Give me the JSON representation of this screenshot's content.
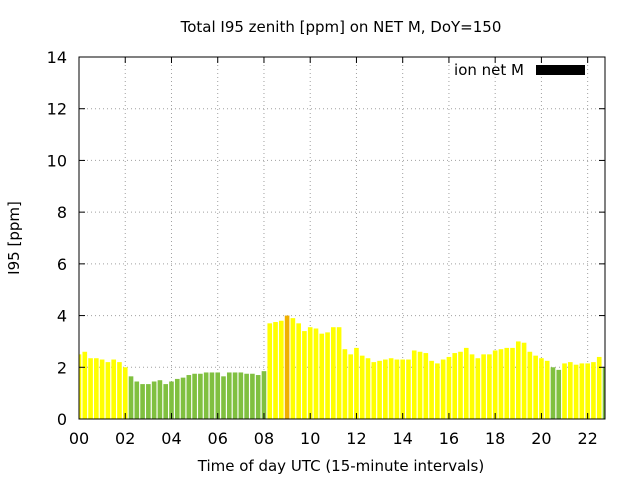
{
  "chart_data": {
    "type": "bar",
    "title": "Total I95 zenith [ppm] on NET M, DoY=150",
    "xlabel": "Time of day UTC (15-minute intervals)",
    "ylabel": "I95 [ppm]",
    "xlim": [
      0,
      22.75
    ],
    "ylim": [
      0,
      14
    ],
    "xticks": [
      0,
      2,
      4,
      6,
      8,
      10,
      12,
      14,
      16,
      18,
      20,
      22
    ],
    "xtick_labels": [
      "00",
      "02",
      "04",
      "06",
      "08",
      "10",
      "12",
      "14",
      "16",
      "18",
      "20",
      "22"
    ],
    "yticks": [
      0,
      2,
      4,
      6,
      8,
      10,
      12,
      14
    ],
    "ytick_labels": [
      "0",
      "2",
      "4",
      "6",
      "8",
      "10",
      "12",
      "14"
    ],
    "grid": true,
    "legend": {
      "label": "ion net M",
      "color": "#000000",
      "position": "top-right"
    },
    "bar_width_hours": 0.2,
    "level_colors": {
      "low": "#80c040",
      "moderate": "#ffff00",
      "high": "#f0b000"
    },
    "series": [
      {
        "name": "ion net M",
        "x": [
          0.0,
          0.25,
          0.5,
          0.75,
          1.0,
          1.25,
          1.5,
          1.75,
          2.0,
          2.25,
          2.5,
          2.75,
          3.0,
          3.25,
          3.5,
          3.75,
          4.0,
          4.25,
          4.5,
          4.75,
          5.0,
          5.25,
          5.5,
          5.75,
          6.0,
          6.25,
          6.5,
          6.75,
          7.0,
          7.25,
          7.5,
          7.75,
          8.0,
          8.25,
          8.5,
          8.75,
          9.0,
          9.25,
          9.5,
          9.75,
          10.0,
          10.25,
          10.5,
          10.75,
          11.0,
          11.25,
          11.5,
          11.75,
          12.0,
          12.25,
          12.5,
          12.75,
          13.0,
          13.25,
          13.5,
          13.75,
          14.0,
          14.25,
          14.5,
          14.75,
          15.0,
          15.25,
          15.5,
          15.75,
          16.0,
          16.25,
          16.5,
          16.75,
          17.0,
          17.25,
          17.5,
          17.75,
          18.0,
          18.25,
          18.5,
          18.75,
          19.0,
          19.25,
          19.5,
          19.75,
          20.0,
          20.25,
          20.5,
          20.75,
          21.0,
          21.25,
          21.5,
          21.75,
          22.0,
          22.25,
          22.5,
          22.75
        ],
        "values": [
          2.5,
          2.6,
          2.35,
          2.35,
          2.3,
          2.2,
          2.3,
          2.2,
          2.0,
          1.65,
          1.45,
          1.35,
          1.35,
          1.45,
          1.5,
          1.35,
          1.45,
          1.55,
          1.6,
          1.7,
          1.75,
          1.75,
          1.8,
          1.8,
          1.8,
          1.65,
          1.8,
          1.8,
          1.8,
          1.75,
          1.75,
          1.7,
          1.85,
          3.7,
          3.75,
          3.8,
          4.0,
          3.9,
          3.7,
          3.4,
          3.55,
          3.5,
          3.3,
          3.35,
          3.55,
          3.55,
          2.7,
          2.5,
          2.75,
          2.45,
          2.35,
          2.2,
          2.25,
          2.3,
          2.35,
          2.3,
          2.3,
          2.3,
          2.65,
          2.6,
          2.55,
          2.25,
          2.15,
          2.3,
          2.4,
          2.55,
          2.6,
          2.75,
          2.5,
          2.35,
          2.5,
          2.5,
          2.65,
          2.7,
          2.75,
          2.75,
          3.0,
          2.95,
          2.6,
          2.45,
          2.35,
          2.25,
          2.0,
          1.9,
          2.15,
          2.2,
          2.1,
          2.15,
          2.15,
          2.2,
          2.4,
          2.0
        ],
        "levels": [
          "moderate",
          "moderate",
          "moderate",
          "moderate",
          "moderate",
          "moderate",
          "moderate",
          "moderate",
          "moderate",
          "low",
          "low",
          "low",
          "low",
          "low",
          "low",
          "low",
          "low",
          "low",
          "low",
          "low",
          "low",
          "low",
          "low",
          "low",
          "low",
          "low",
          "low",
          "low",
          "low",
          "low",
          "low",
          "low",
          "low",
          "moderate",
          "moderate",
          "moderate",
          "high",
          "moderate",
          "moderate",
          "moderate",
          "moderate",
          "moderate",
          "moderate",
          "moderate",
          "moderate",
          "moderate",
          "moderate",
          "moderate",
          "moderate",
          "moderate",
          "moderate",
          "moderate",
          "moderate",
          "moderate",
          "moderate",
          "moderate",
          "moderate",
          "moderate",
          "moderate",
          "moderate",
          "moderate",
          "moderate",
          "moderate",
          "moderate",
          "moderate",
          "moderate",
          "moderate",
          "moderate",
          "moderate",
          "moderate",
          "moderate",
          "moderate",
          "moderate",
          "moderate",
          "moderate",
          "moderate",
          "moderate",
          "moderate",
          "moderate",
          "moderate",
          "moderate",
          "moderate",
          "low",
          "low",
          "moderate",
          "moderate",
          "moderate",
          "moderate",
          "moderate",
          "moderate",
          "moderate",
          "low"
        ]
      }
    ]
  }
}
